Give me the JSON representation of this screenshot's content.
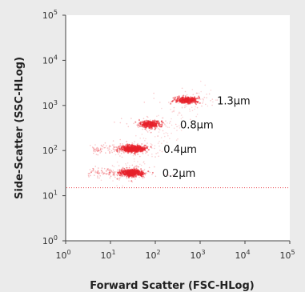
{
  "chart_data": {
    "type": "scatter",
    "xlabel": "Forward Scatter (FSC-HLog)",
    "ylabel": "Side-Scatter (SSC-HLog)",
    "x_scale": "log",
    "y_scale": "log",
    "xlim": [
      1,
      100000
    ],
    "ylim": [
      1,
      100000
    ],
    "x_ticks": [
      {
        "base": "10",
        "exp": "0",
        "value": 1
      },
      {
        "base": "10",
        "exp": "1",
        "value": 10
      },
      {
        "base": "10",
        "exp": "2",
        "value": 100
      },
      {
        "base": "10",
        "exp": "3",
        "value": 1000
      },
      {
        "base": "10",
        "exp": "4",
        "value": 10000
      },
      {
        "base": "10",
        "exp": "5",
        "value": 100000
      }
    ],
    "y_ticks": [
      {
        "base": "10",
        "exp": "0",
        "value": 1
      },
      {
        "base": "10",
        "exp": "1",
        "value": 10
      },
      {
        "base": "10",
        "exp": "2",
        "value": 100
      },
      {
        "base": "10",
        "exp": "3",
        "value": 1000
      },
      {
        "base": "10",
        "exp": "4",
        "value": 10000
      },
      {
        "base": "10",
        "exp": "5",
        "value": 100000
      }
    ],
    "grid": false,
    "point_color": "#e8202a",
    "populations": [
      {
        "label": "0.2µm",
        "x_center": 30,
        "y_center": 32,
        "x_range": [
          3,
          60
        ]
      },
      {
        "label": "0.4µm",
        "x_center": 32,
        "y_center": 110,
        "x_range": [
          4,
          65
        ]
      },
      {
        "label": "0.8µm",
        "x_center": 75,
        "y_center": 380
      },
      {
        "label": "1.3µm",
        "x_center": 500,
        "y_center": 1300
      }
    ],
    "threshold_y": 15
  }
}
